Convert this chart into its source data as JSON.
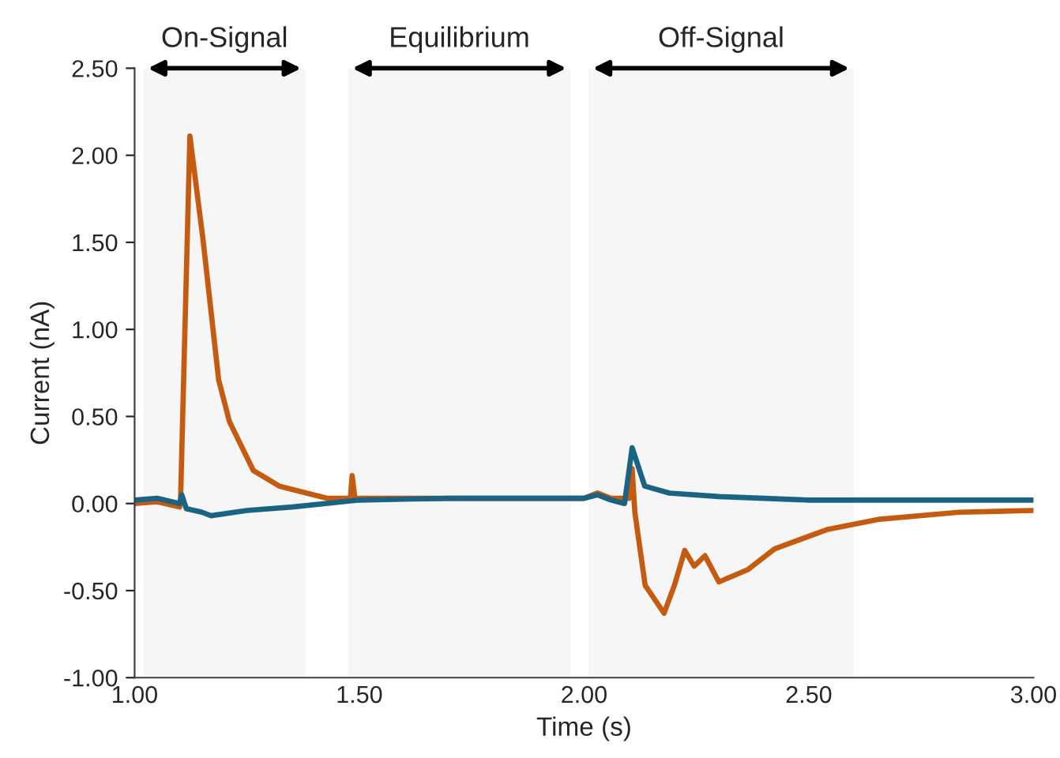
{
  "chart_data": {
    "type": "line",
    "xlabel": "Time (s)",
    "ylabel": "Current (nA)",
    "xlim": [
      1.0,
      3.0
    ],
    "xticks": [
      {
        "value": 1.0,
        "label": "1.00"
      },
      {
        "value": 1.5,
        "label": "1.50"
      },
      {
        "value": 2.0,
        "label": "2.00"
      },
      {
        "value": 2.5,
        "label": "2.50"
      },
      {
        "value": 3.0,
        "label": "3.00"
      }
    ],
    "ylim": [
      -1.0,
      2.5
    ],
    "yticks": [
      {
        "value": -1.0,
        "label": "-1.00"
      },
      {
        "value": -0.5,
        "label": "-0.50"
      },
      {
        "value": 0.0,
        "label": "0.00"
      },
      {
        "value": 0.5,
        "label": "0.50"
      },
      {
        "value": 1.0,
        "label": "1.00"
      },
      {
        "value": 1.5,
        "label": "1.50"
      },
      {
        "value": 2.0,
        "label": "2.00"
      },
      {
        "value": 2.5,
        "label": "2.50"
      }
    ],
    "grid": false,
    "marker": "none",
    "line_style": "solid",
    "bands": [
      {
        "axis": "x",
        "from": 1.02,
        "to": 1.38,
        "label": "On-Signal"
      },
      {
        "axis": "x",
        "from": 1.475,
        "to": 1.97,
        "label": "Equilibrium"
      },
      {
        "axis": "x",
        "from": 2.01,
        "to": 2.6,
        "label": "Off-Signal"
      }
    ],
    "series": [
      {
        "color": "#c55a11",
        "x": [
          1.0,
          1.05,
          1.1,
          1.102,
          1.123,
          1.152,
          1.187,
          1.211,
          1.264,
          1.322,
          1.428,
          1.48,
          1.484,
          1.49,
          1.6,
          1.8,
          2.0,
          2.03,
          2.06,
          2.1,
          2.107,
          2.113,
          2.136,
          2.178,
          2.201,
          2.224,
          2.245,
          2.269,
          2.3,
          2.364,
          2.424,
          2.54,
          2.658,
          2.834,
          3.0
        ],
        "values": [
          0.0,
          0.01,
          -0.02,
          0.0,
          2.11,
          1.52,
          0.71,
          0.47,
          0.19,
          0.1,
          0.03,
          0.03,
          0.16,
          0.03,
          0.03,
          0.03,
          0.03,
          0.06,
          0.03,
          0.03,
          0.2,
          -0.05,
          -0.47,
          -0.63,
          -0.47,
          -0.27,
          -0.36,
          -0.3,
          -0.45,
          -0.38,
          -0.26,
          -0.15,
          -0.09,
          -0.05,
          -0.04
        ]
      },
      {
        "color": "#1b6382",
        "x": [
          1.0,
          1.05,
          1.1,
          1.105,
          1.115,
          1.15,
          1.17,
          1.25,
          1.35,
          1.5,
          1.7,
          2.0,
          2.03,
          2.06,
          2.09,
          2.107,
          2.135,
          2.19,
          2.3,
          2.5,
          2.75,
          3.0
        ],
        "values": [
          0.02,
          0.03,
          0.0,
          0.05,
          -0.03,
          -0.05,
          -0.07,
          -0.04,
          -0.02,
          0.02,
          0.03,
          0.03,
          0.05,
          0.02,
          0.0,
          0.32,
          0.1,
          0.06,
          0.04,
          0.02,
          0.02,
          0.02
        ]
      }
    ]
  }
}
